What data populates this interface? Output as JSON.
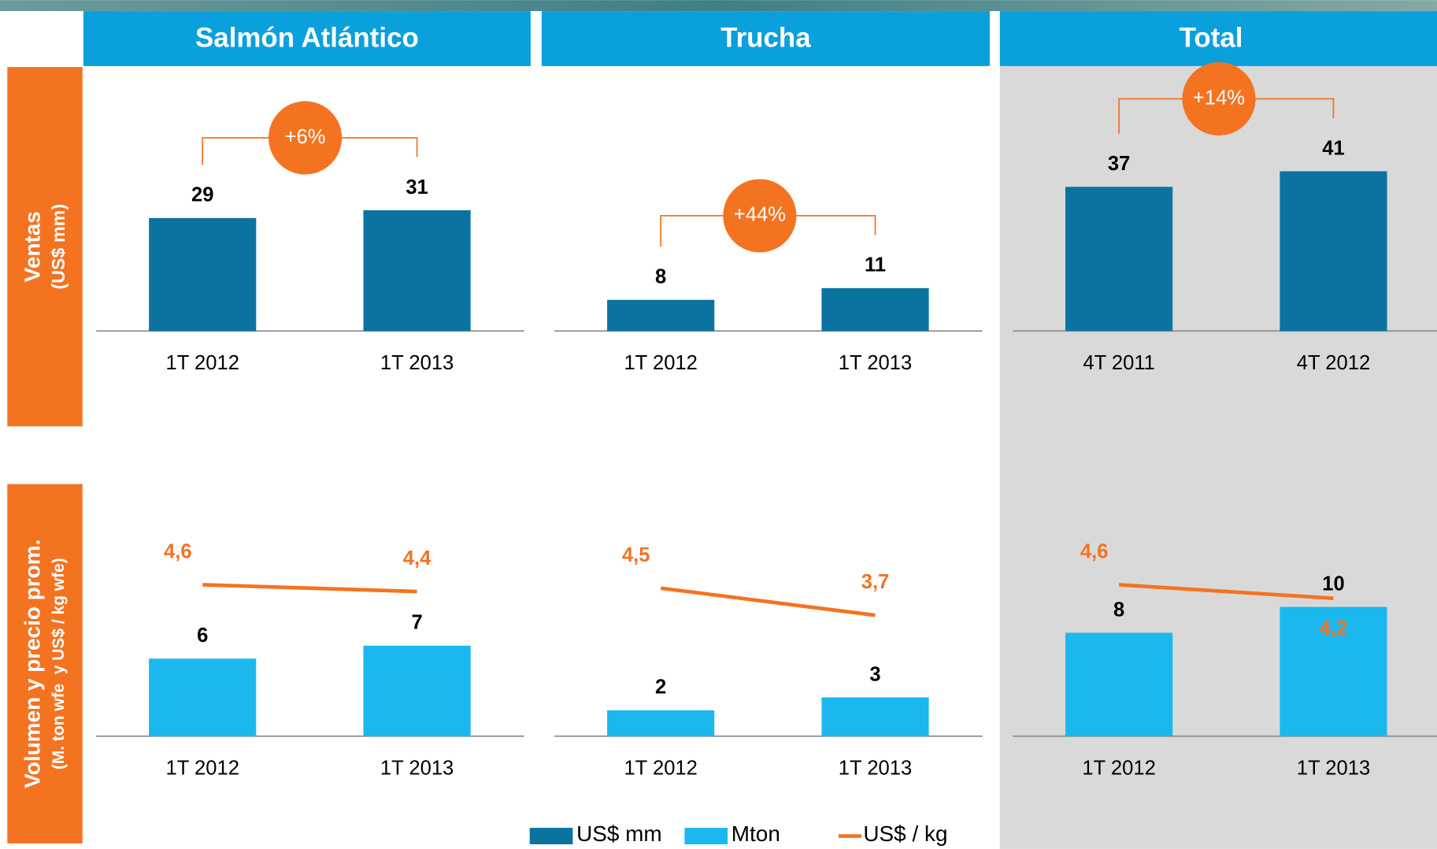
{
  "headers": [
    "Salmón Atlántico",
    "Trucha",
    "Total"
  ],
  "row_labels": [
    {
      "title": "Ventas",
      "subtitle": "(US$ mm)"
    },
    {
      "title": "Volumen y precio prom.",
      "subtitle": "(M. ton wfe  y US$ / kg wfe)"
    }
  ],
  "legend": [
    {
      "name": "US$ mm",
      "color": "#0b73a0",
      "type": "bar"
    },
    {
      "name": "Mton",
      "color": "#1ab8ee",
      "type": "bar"
    },
    {
      "name": "US$ / kg",
      "color": "#f47321",
      "type": "line"
    }
  ],
  "chart_data": [
    {
      "type": "bar",
      "categories": [
        "1T 2012",
        "1T 2013"
      ],
      "values": [
        29,
        31
      ],
      "color": "#0b73a0",
      "annotation": "+6%"
    },
    {
      "type": "bar",
      "categories": [
        "1T 2012",
        "1T 2013"
      ],
      "values": [
        8,
        11
      ],
      "color": "#0b73a0",
      "annotation": "+44%"
    },
    {
      "type": "bar",
      "categories": [
        "4T 2011",
        "4T 2012"
      ],
      "values": [
        37,
        41
      ],
      "color": "#0b73a0",
      "annotation": "+14%"
    },
    {
      "type": "combo",
      "categories": [
        "1T 2012",
        "1T 2013"
      ],
      "series": [
        {
          "type": "bar",
          "color": "#1ab8ee",
          "values": [
            6,
            7
          ]
        },
        {
          "type": "line",
          "axis": "y2",
          "color": "#f47321",
          "values": [
            4.6,
            4.4
          ],
          "value_labels": [
            "4,6",
            "4,4"
          ]
        }
      ]
    },
    {
      "type": "combo",
      "categories": [
        "1T 2012",
        "1T 2013"
      ],
      "series": [
        {
          "type": "bar",
          "color": "#1ab8ee",
          "values": [
            2,
            3
          ]
        },
        {
          "type": "line",
          "axis": "y2",
          "color": "#f47321",
          "values": [
            4.5,
            3.7
          ],
          "value_labels": [
            "4,5",
            "3,7"
          ]
        }
      ]
    },
    {
      "type": "combo",
      "categories": [
        "1T 2012",
        "1T 2013"
      ],
      "series": [
        {
          "type": "bar",
          "color": "#1ab8ee",
          "values": [
            8,
            10
          ]
        },
        {
          "type": "line",
          "axis": "y2",
          "color": "#f47321",
          "values": [
            4.6,
            4.2
          ],
          "value_labels": [
            "4,6",
            "4,2"
          ]
        }
      ]
    }
  ]
}
